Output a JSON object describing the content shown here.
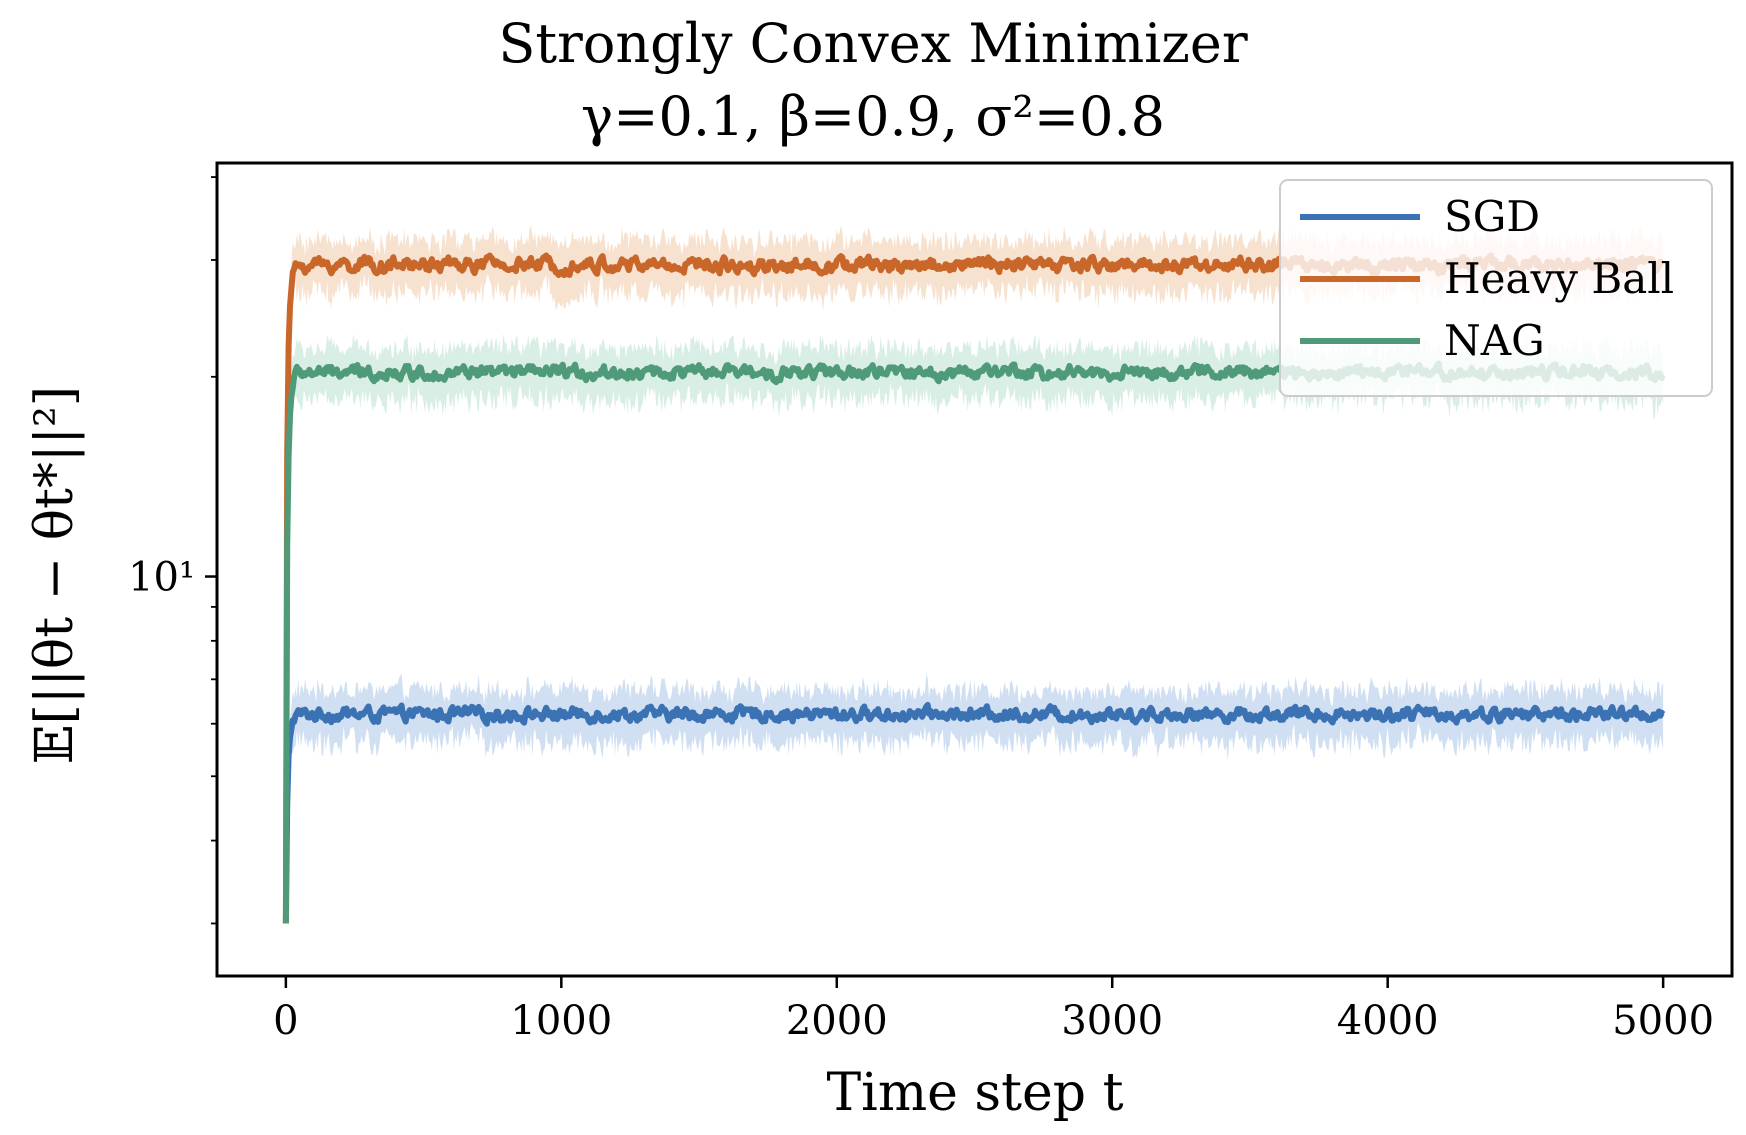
{
  "chart_data": {
    "type": "line",
    "title": "Strongly Convex Minimizer",
    "subtitle": "γ=0.1, β=0.9, σ²=0.8",
    "xlabel": "Time step t",
    "ylabel": "𝔼[||θt − θt*||²]",
    "xscale": "linear",
    "yscale": "log",
    "xlim": [
      -250,
      5250
    ],
    "ylim": [
      2.5,
      42
    ],
    "x_ticks": [
      0,
      1000,
      2000,
      3000,
      4000,
      5000
    ],
    "x_tick_labels": [
      "0",
      "1000",
      "2000",
      "3000",
      "4000",
      "5000"
    ],
    "y_ticks": [
      10
    ],
    "y_tick_labels": [
      "10¹"
    ],
    "legend_position": "top-right",
    "grid": false,
    "series": [
      {
        "name": "SGD",
        "color": "#3a72b4",
        "band_color": "#a9c6e8",
        "start_value": 3.0,
        "steady_mean": 6.2,
        "noise_amplitude": 0.25,
        "band_spread": 0.55,
        "t_range": [
          0,
          5000
        ]
      },
      {
        "name": "Heavy Ball",
        "color": "#c9662a",
        "band_color": "#f0c9a8",
        "start_value": 3.0,
        "steady_mean": 29.5,
        "noise_amplitude": 1.3,
        "band_spread": 2.6,
        "t_range": [
          0,
          5000
        ]
      },
      {
        "name": "NAG",
        "color": "#4f9a78",
        "band_color": "#b9e0cd",
        "start_value": 3.0,
        "steady_mean": 20.3,
        "noise_amplitude": 0.8,
        "band_spread": 1.8,
        "t_range": [
          0,
          5000
        ]
      }
    ]
  }
}
